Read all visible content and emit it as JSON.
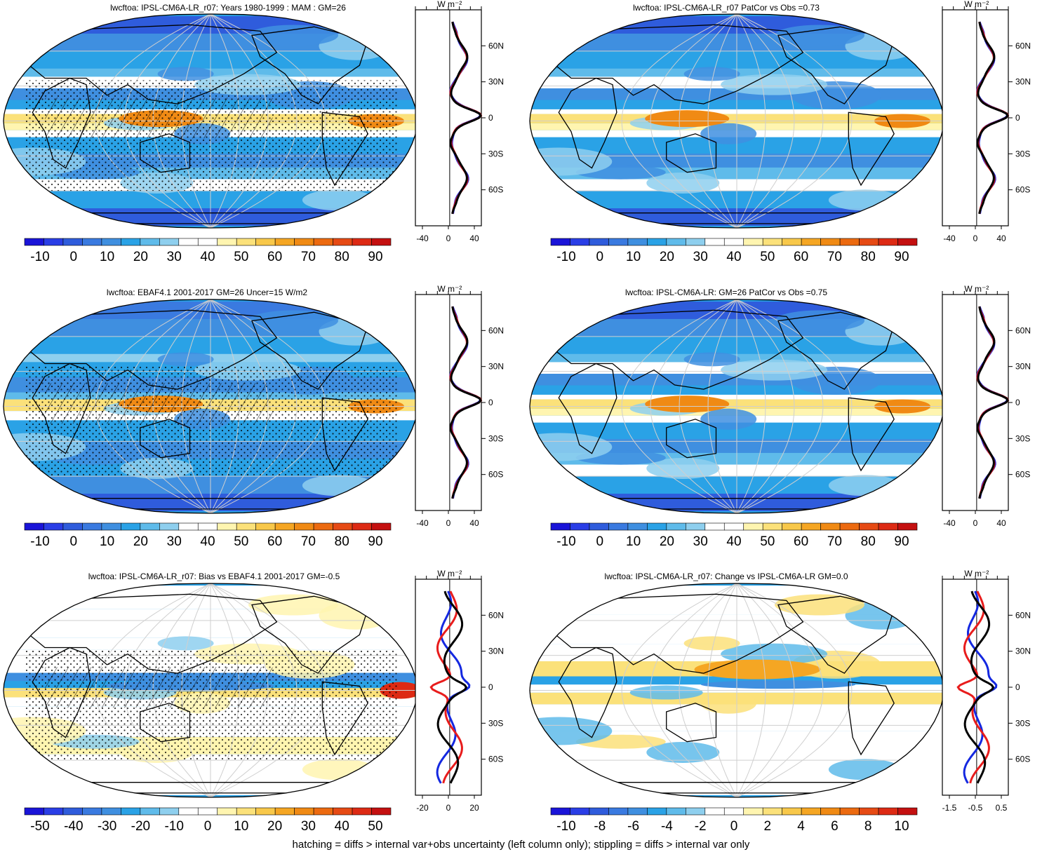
{
  "footnote": "hatching = diffs > internal var+obs uncertainty (left column only); stippling = diffs > internal var only",
  "colors": {
    "scale": [
      "#1a14d8",
      "#2a3ee6",
      "#2f5cdc",
      "#3a7ae0",
      "#3f8fe0",
      "#2aa2e6",
      "#5fbbea",
      "#8ecfee",
      "#ffffff",
      "#ffffff",
      "#fff5b0",
      "#fbe17a",
      "#f8c84a",
      "#f5a623",
      "#f08a14",
      "#ec6a10",
      "#e64a14",
      "#dd2a14",
      "#c41010"
    ],
    "land": "#000000",
    "grid": "#cfcfcf"
  },
  "panels": [
    {
      "id": "p1",
      "title": "lwcftoa: IPSL-CM6A-LR_r07: Years 1980-1999 : MAM : GM=26",
      "colorbar_labels": [
        "-10",
        "0",
        "10",
        "20",
        "30",
        "40",
        "50",
        "60",
        "70",
        "80",
        "90"
      ],
      "profile_unit": "W m⁻²",
      "profile_xticks": [
        "-40",
        "0",
        "40"
      ],
      "lat_labels": [
        "60N",
        "30N",
        "0",
        "30S",
        "60S"
      ],
      "style": "mean",
      "hatched": true
    },
    {
      "id": "p2",
      "title": "lwcftoa: IPSL-CM6A-LR_r07 PatCor vs Obs =0.73",
      "colorbar_labels": [
        "-10",
        "0",
        "10",
        "20",
        "30",
        "40",
        "50",
        "60",
        "70",
        "80",
        "90"
      ],
      "profile_unit": "W m⁻²",
      "profile_xticks": [
        "-40",
        "0",
        "40"
      ],
      "lat_labels": [
        "60N",
        "30N",
        "0",
        "30S",
        "60S"
      ],
      "style": "mean",
      "hatched": false
    },
    {
      "id": "p3",
      "title": "lwcftoa: EBAF4.1 2001-2017 GM=26 Uncer=15 W/m2",
      "colorbar_labels": [
        "-10",
        "0",
        "10",
        "20",
        "30",
        "40",
        "50",
        "60",
        "70",
        "80",
        "90"
      ],
      "profile_unit": "W m⁻²",
      "profile_xticks": [
        "-40",
        "0",
        "40"
      ],
      "lat_labels": [
        "60N",
        "30N",
        "0",
        "30S",
        "60S"
      ],
      "style": "obs",
      "hatched": true
    },
    {
      "id": "p4",
      "title": "lwcftoa: IPSL-CM6A-LR: GM=26 PatCor vs Obs =0.75",
      "colorbar_labels": [
        "-10",
        "0",
        "10",
        "20",
        "30",
        "40",
        "50",
        "60",
        "70",
        "80",
        "90"
      ],
      "profile_unit": "W m⁻²",
      "profile_xticks": [
        "-40",
        "0",
        "40"
      ],
      "lat_labels": [
        "60N",
        "30N",
        "0",
        "30S",
        "60S"
      ],
      "style": "mean",
      "hatched": false
    },
    {
      "id": "p5",
      "title": "lwcftoa: IPSL-CM6A-LR_r07: Bias vs EBAF4.1 2001-2017 GM=-0.5",
      "colorbar_labels": [
        "-50",
        "-40",
        "-30",
        "-20",
        "-10",
        "0",
        "10",
        "20",
        "30",
        "40",
        "50"
      ],
      "profile_unit": "W m⁻²",
      "profile_xticks": [
        "-20",
        "0",
        "20"
      ],
      "lat_labels": [
        "60N",
        "30N",
        "0",
        "30S",
        "60S"
      ],
      "style": "bias",
      "hatched": true
    },
    {
      "id": "p6",
      "title": "lwcftoa: IPSL-CM6A-LR_r07: Change vs IPSL-CM6A-LR GM=0.0",
      "colorbar_labels": [
        "-10",
        "-8",
        "-6",
        "-4",
        "-2",
        "0",
        "2",
        "4",
        "6",
        "8",
        "10"
      ],
      "profile_unit": "W m⁻²",
      "profile_xticks": [
        "-1.5",
        "-0.5",
        "0.5"
      ],
      "lat_labels": [
        "60N",
        "30N",
        "0",
        "30S",
        "60S"
      ],
      "style": "change",
      "hatched": false
    }
  ]
}
